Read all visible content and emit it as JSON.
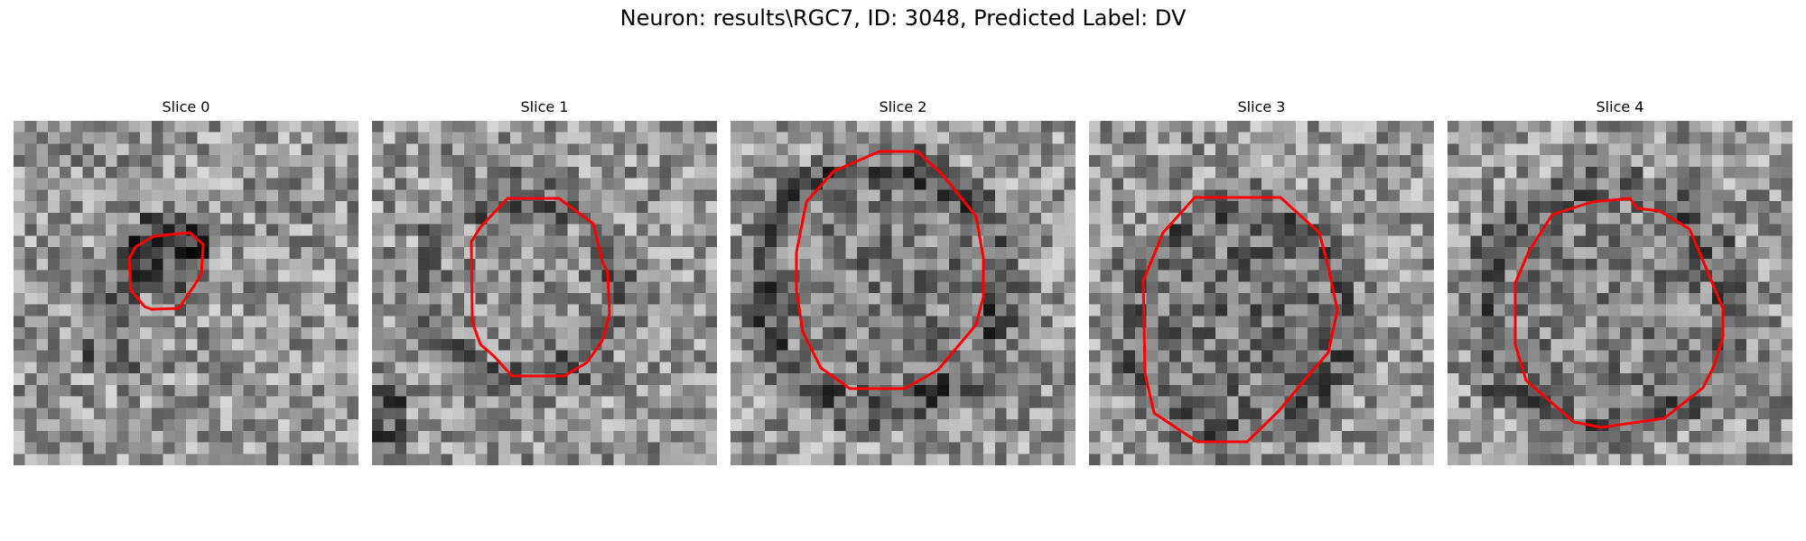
{
  "figure": {
    "title": "Neuron: results\\RGC7, ID: 3048, Predicted Label: DV"
  },
  "colors": {
    "contour": "#ff0000",
    "colormap": "grayscale"
  },
  "slices": [
    {
      "title": "Slice 0"
    },
    {
      "title": "Slice 1"
    },
    {
      "title": "Slice 2"
    },
    {
      "title": "Slice 3"
    },
    {
      "title": "Slice 4"
    }
  ]
}
